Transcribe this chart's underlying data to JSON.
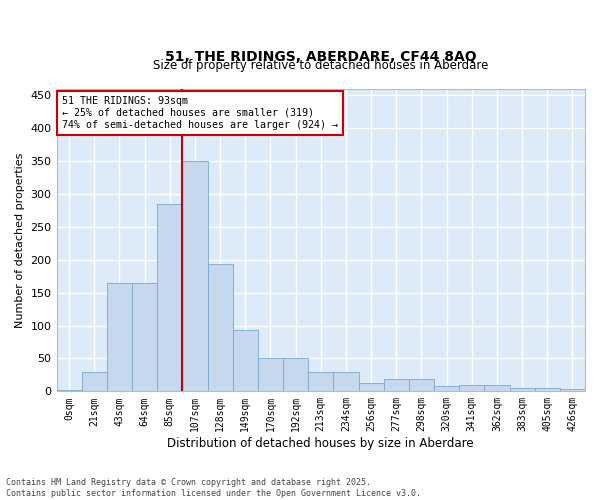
{
  "title_line1": "51, THE RIDINGS, ABERDARE, CF44 8AQ",
  "title_line2": "Size of property relative to detached houses in Aberdare",
  "xlabel": "Distribution of detached houses by size in Aberdare",
  "ylabel": "Number of detached properties",
  "bar_color": "#c5d8ed",
  "bar_edge_color": "#7aa8cc",
  "background_color": "#ddeaf7",
  "grid_color": "#ffffff",
  "categories": [
    "0sqm",
    "21sqm",
    "43sqm",
    "64sqm",
    "85sqm",
    "107sqm",
    "128sqm",
    "149sqm",
    "170sqm",
    "192sqm",
    "213sqm",
    "234sqm",
    "256sqm",
    "277sqm",
    "298sqm",
    "320sqm",
    "341sqm",
    "362sqm",
    "383sqm",
    "405sqm",
    "426sqm"
  ],
  "values": [
    2,
    30,
    165,
    165,
    285,
    350,
    193,
    93,
    50,
    50,
    30,
    30,
    13,
    18,
    18,
    8,
    10,
    10,
    5,
    5,
    4
  ],
  "ylim": [
    0,
    460
  ],
  "yticks": [
    0,
    50,
    100,
    150,
    200,
    250,
    300,
    350,
    400,
    450
  ],
  "red_line_x": 4.5,
  "annotation_title": "51 THE RIDINGS: 93sqm",
  "annotation_line1": "← 25% of detached houses are smaller (319)",
  "annotation_line2": "74% of semi-detached houses are larger (924) →",
  "annotation_box_facecolor": "#ffffff",
  "annotation_box_edgecolor": "#cc0000",
  "red_line_color": "#cc0000",
  "fig_bg_color": "#ffffff",
  "footnote_line1": "Contains HM Land Registry data © Crown copyright and database right 2025.",
  "footnote_line2": "Contains public sector information licensed under the Open Government Licence v3.0."
}
